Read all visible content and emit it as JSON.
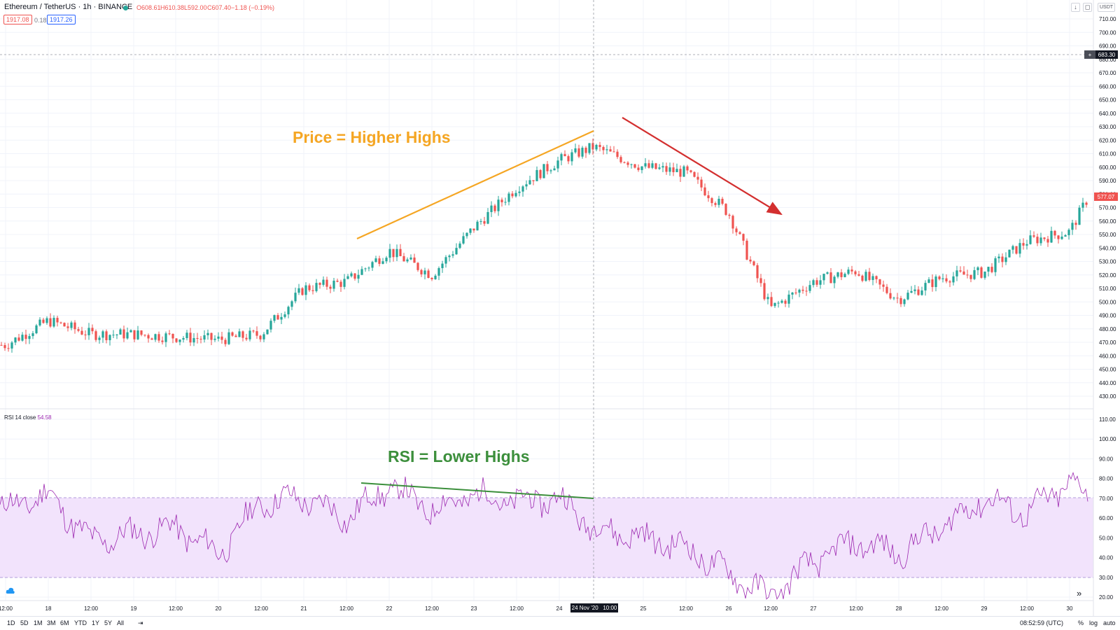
{
  "header": {
    "symbol": "Ethereum / TetherUS · 1h · BINANCE",
    "open": "O608.61",
    "high": "H610.38",
    "low": "L592.00",
    "close": "C607.40",
    "change": "−1.18 (−0.19%)",
    "bid": "1917.08",
    "spread": "0.18",
    "ask": "1917.26",
    "currency": "USDT"
  },
  "price_axis": {
    "ticks": [
      "710.00",
      "700.00",
      "690.00",
      "680.00",
      "670.00",
      "660.00",
      "650.00",
      "640.00",
      "630.00",
      "620.00",
      "610.00",
      "600.00",
      "590.00",
      "580.00",
      "570.00",
      "560.00",
      "550.00",
      "540.00",
      "530.00",
      "520.00",
      "510.00",
      "500.00",
      "490.00",
      "480.00",
      "470.00",
      "460.00",
      "450.00",
      "440.00",
      "430.00"
    ],
    "crosshair_price": "683.30",
    "last_price": "577.07"
  },
  "rsi": {
    "label": "RSI 14 close",
    "value": "54.58",
    "ticks": [
      "110.00",
      "100.00",
      "90.00",
      "80.00",
      "70.00",
      "60.00",
      "50.00",
      "40.00",
      "30.00",
      "20.00"
    ]
  },
  "time_axis": {
    "ticks": [
      "12:00",
      "18",
      "12:00",
      "19",
      "12:00",
      "20",
      "12:00",
      "21",
      "12:00",
      "22",
      "12:00",
      "23",
      "12:00",
      "24",
      "25",
      "12:00",
      "26",
      "12:00",
      "27",
      "12:00",
      "28",
      "12:00",
      "29",
      "12:00",
      "30"
    ],
    "crosshair_time": "24 Nov '20   10:00"
  },
  "annotations": {
    "price": "Price = Higher Highs",
    "rsi": "RSI = Lower Highs"
  },
  "bottom_bar": {
    "timeframes": [
      "1D",
      "5D",
      "1M",
      "3M",
      "6M",
      "YTD",
      "1Y",
      "5Y",
      "All"
    ],
    "time": "08:52:59 (UTC)",
    "percent": "%",
    "log": "log",
    "auto": "auto"
  },
  "colors": {
    "up": "#26a69a",
    "down": "#ef5350",
    "rsi_line": "#9c27b0",
    "rsi_band": "#f2e3fc",
    "price_trend": "#f5a623",
    "rsi_trend": "#3c8f3c",
    "arrow": "#d32f2f"
  },
  "chart_data": [
    {
      "type": "line",
      "title": "",
      "series": [
        {
          "name": "",
          "x": [
            "17 12:00",
            "18 00:00",
            "18 12:00",
            "19 00:00",
            "19 12:00",
            "20 00:00",
            "20 12:00",
            "21 00:00",
            "21 12:00",
            "22 00:00",
            "22 12:00",
            "23 00:00",
            "23 12:00",
            "24 00:00",
            "24 10:00",
            "25 00:00",
            "25 12:00",
            "26 00:00",
            "26 12:00",
            "27 00:00",
            "27 12:00",
            "28 00:00",
            "28 12:00",
            "29 00:00",
            "29 12:00",
            "30 00:00",
            "30 12:00"
          ],
          "values": [
            468,
            486,
            476,
            476,
            474,
            472,
            476,
            510,
            515,
            538,
            520,
            555,
            585,
            605,
            615,
            600,
            596,
            566,
            495,
            515,
            523,
            502,
            518,
            522,
            545,
            552,
            583
          ]
        }
      ],
      "ylim": [
        430,
        715
      ]
    },
    {
      "type": "line",
      "title": "",
      "series": [
        {
          "name": "RSI 14 close",
          "x": [
            "17 12:00",
            "18 00:00",
            "18 12:00",
            "19 00:00",
            "19 12:00",
            "20 00:00",
            "20 12:00",
            "21 00:00",
            "21 12:00",
            "22 00:00",
            "22 12:00",
            "23 00:00",
            "23 12:00",
            "24 00:00",
            "24 10:00",
            "25 00:00",
            "25 12:00",
            "26 00:00",
            "26 12:00",
            "27 00:00",
            "27 12:00",
            "28 00:00",
            "28 12:00",
            "29 00:00",
            "29 12:00",
            "30 00:00",
            "30 12:00"
          ],
          "values": [
            65,
            72,
            48,
            52,
            55,
            42,
            68,
            70,
            60,
            76,
            64,
            72,
            68,
            70,
            55,
            50,
            45,
            32,
            20,
            38,
            48,
            42,
            55,
            70,
            62,
            78,
            70
          ]
        }
      ],
      "ylim": [
        18,
        112
      ]
    }
  ]
}
